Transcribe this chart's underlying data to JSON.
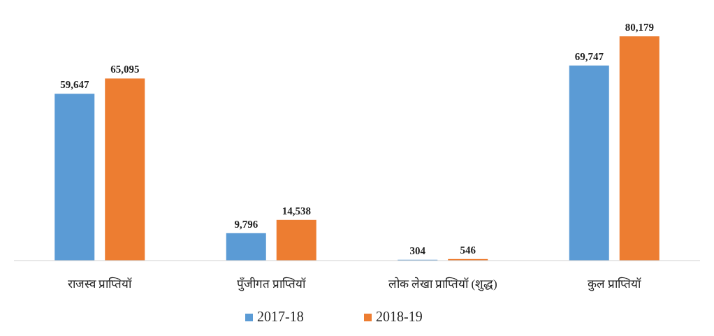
{
  "chart_data": {
    "type": "bar",
    "categories": [
      "राजस्व प्राप्तियॉ",
      "पुँजीगत प्राप्तियॉ",
      "लोक लेखा प्राप्तियॉ (शुद्ध)",
      "कुल प्राप्तियॉ"
    ],
    "series": [
      {
        "name": "2017-18",
        "color": "#5b9bd5",
        "values": [
          59647,
          9796,
          304,
          69747
        ],
        "value_labels": [
          "59,647",
          "9,796",
          "304",
          "69,747"
        ]
      },
      {
        "name": "2018-19",
        "color": "#ed7d31",
        "values": [
          65095,
          14538,
          546,
          80179
        ],
        "value_labels": [
          "65,095",
          "14,538",
          "546",
          "80,179"
        ]
      }
    ],
    "legend": "bottom"
  }
}
